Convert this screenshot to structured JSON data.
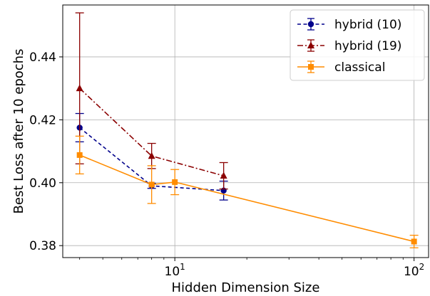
{
  "chart_data": {
    "type": "line",
    "xscale": "log",
    "xlabel": "Hidden Dimension Size",
    "ylabel": "Best Loss after 10 epochs",
    "xlim": [
      3.4,
      115
    ],
    "ylim": [
      0.3762,
      0.4565
    ],
    "xticks": [
      {
        "value": 10,
        "base": "10",
        "exp": "1"
      },
      {
        "value": 100,
        "base": "10",
        "exp": "2"
      }
    ],
    "yticks": [
      {
        "value": 0.38,
        "label": "0.38"
      },
      {
        "value": 0.4,
        "label": "0.40"
      },
      {
        "value": 0.42,
        "label": "0.42"
      },
      {
        "value": 0.44,
        "label": "0.44"
      }
    ],
    "grid": true,
    "legend_position": "top-right",
    "series": [
      {
        "name": "hybrid (10)",
        "color": "#00008b",
        "linestyle": "dashed",
        "marker": "circle",
        "points": [
          {
            "x": 4,
            "y": 0.4175,
            "err": 0.0045
          },
          {
            "x": 8,
            "y": 0.399,
            "err": 0.0008
          },
          {
            "x": 16,
            "y": 0.3975,
            "err": 0.003
          }
        ]
      },
      {
        "name": "hybrid (19)",
        "color": "#8b0000",
        "linestyle": "dashdot",
        "marker": "triangle",
        "points": [
          {
            "x": 4,
            "y": 0.43,
            "err": 0.024
          },
          {
            "x": 8,
            "y": 0.4085,
            "err": 0.004
          },
          {
            "x": 16,
            "y": 0.4022,
            "err": 0.0042
          }
        ]
      },
      {
        "name": "classical",
        "color": "#ff8c00",
        "linestyle": "solid",
        "marker": "square",
        "points": [
          {
            "x": 4,
            "y": 0.4088,
            "err": 0.006
          },
          {
            "x": 8,
            "y": 0.3994,
            "err": 0.006
          },
          {
            "x": 10,
            "y": 0.4002,
            "err": 0.004
          },
          {
            "x": 100,
            "y": 0.3813,
            "err": 0.002
          }
        ]
      }
    ]
  }
}
